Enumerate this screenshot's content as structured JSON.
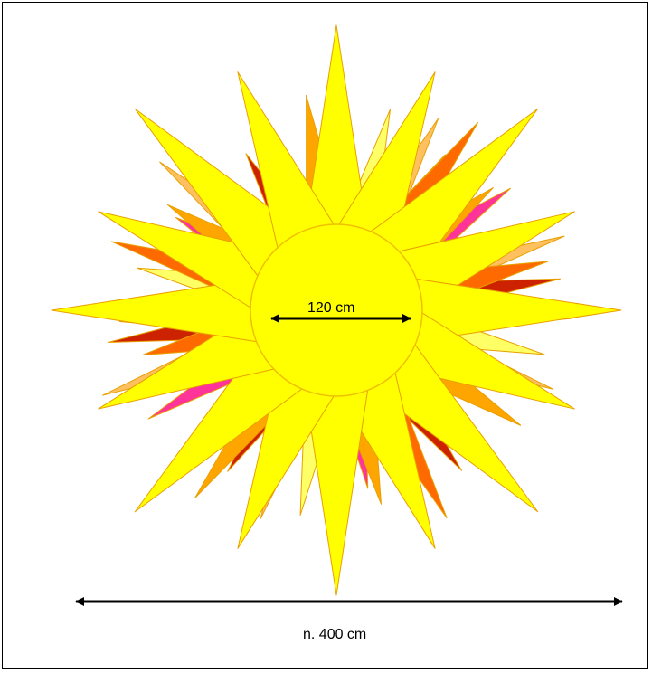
{
  "diagram": {
    "inner_diameter_label": "120 cm",
    "outer_diameter_label": "n. 400 cm"
  },
  "colors": {
    "background": "#ffffff",
    "border": "#000000",
    "core_fill": "#ffff00",
    "core_stroke": "#f0c000",
    "ray_stroke": "#e8a000",
    "ray_colors": [
      "#ffff00",
      "#ffa500",
      "#ff6a00",
      "#cc2200",
      "#ff3399",
      "#ffc060",
      "#ffff66"
    ],
    "arrow": "#000000"
  },
  "icons": {
    "inner_arrow": "double-headed-arrow",
    "outer_arrow": "double-headed-arrow"
  }
}
